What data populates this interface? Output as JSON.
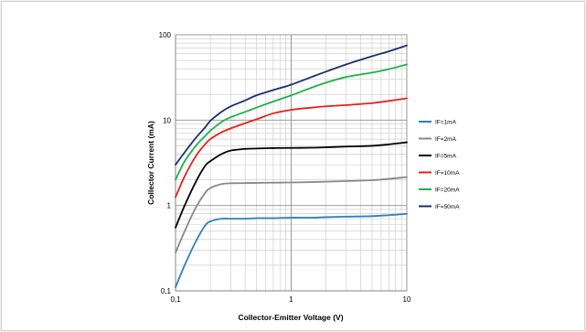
{
  "chart_data": {
    "type": "line",
    "title": "",
    "xlabel": "Collector-Emitter Voltage (V)",
    "ylabel": "Collector Current (mA)",
    "xscale": "log",
    "yscale": "log",
    "xlim": [
      0.1,
      10
    ],
    "ylim": [
      0.1,
      100
    ],
    "grid": true,
    "legend_position": "right",
    "x_tick_labels": [
      "0,1",
      "1",
      "10"
    ],
    "y_tick_labels": [
      "0,1",
      "1",
      "10",
      "100"
    ],
    "x": [
      0.1,
      0.12,
      0.15,
      0.18,
      0.2,
      0.25,
      0.3,
      0.4,
      0.5,
      0.7,
      1.0,
      1.5,
      2.0,
      3.0,
      5.0,
      7.0,
      10.0
    ],
    "series": [
      {
        "name": "IF=1mA",
        "color": "#2e7fbf",
        "values": [
          0.11,
          0.2,
          0.38,
          0.58,
          0.65,
          0.7,
          0.7,
          0.7,
          0.71,
          0.71,
          0.72,
          0.72,
          0.73,
          0.74,
          0.75,
          0.77,
          0.8
        ]
      },
      {
        "name": "IF=2mA",
        "color": "#888888",
        "values": [
          0.28,
          0.5,
          0.95,
          1.4,
          1.6,
          1.78,
          1.82,
          1.83,
          1.84,
          1.85,
          1.86,
          1.88,
          1.9,
          1.93,
          1.98,
          2.05,
          2.15
        ]
      },
      {
        "name": "IF=5mA",
        "color": "#000000",
        "values": [
          0.55,
          1.0,
          1.9,
          2.9,
          3.3,
          4.0,
          4.4,
          4.6,
          4.65,
          4.7,
          4.72,
          4.75,
          4.8,
          4.9,
          5.0,
          5.2,
          5.5
        ]
      },
      {
        "name": "IF=10mA",
        "color": "#e8201c",
        "values": [
          1.25,
          2.2,
          3.8,
          5.2,
          6.0,
          7.2,
          8.0,
          9.2,
          10.2,
          12.0,
          13.2,
          14.0,
          14.5,
          15.0,
          15.8,
          16.8,
          18.0
        ]
      },
      {
        "name": "IF=20mA",
        "color": "#1db24a",
        "values": [
          2.0,
          3.3,
          5.0,
          6.5,
          7.5,
          9.5,
          10.8,
          12.5,
          14.0,
          16.5,
          19.5,
          24.0,
          27.5,
          32.0,
          36.0,
          39.5,
          45.0
        ]
      },
      {
        "name": "IF=50mA",
        "color": "#1a2f6e",
        "values": [
          3.0,
          4.2,
          6.2,
          8.2,
          9.8,
          12.5,
          14.5,
          17.0,
          19.5,
          22.5,
          26.0,
          32.0,
          37.0,
          45.0,
          56.0,
          64.0,
          75.0
        ]
      }
    ]
  }
}
